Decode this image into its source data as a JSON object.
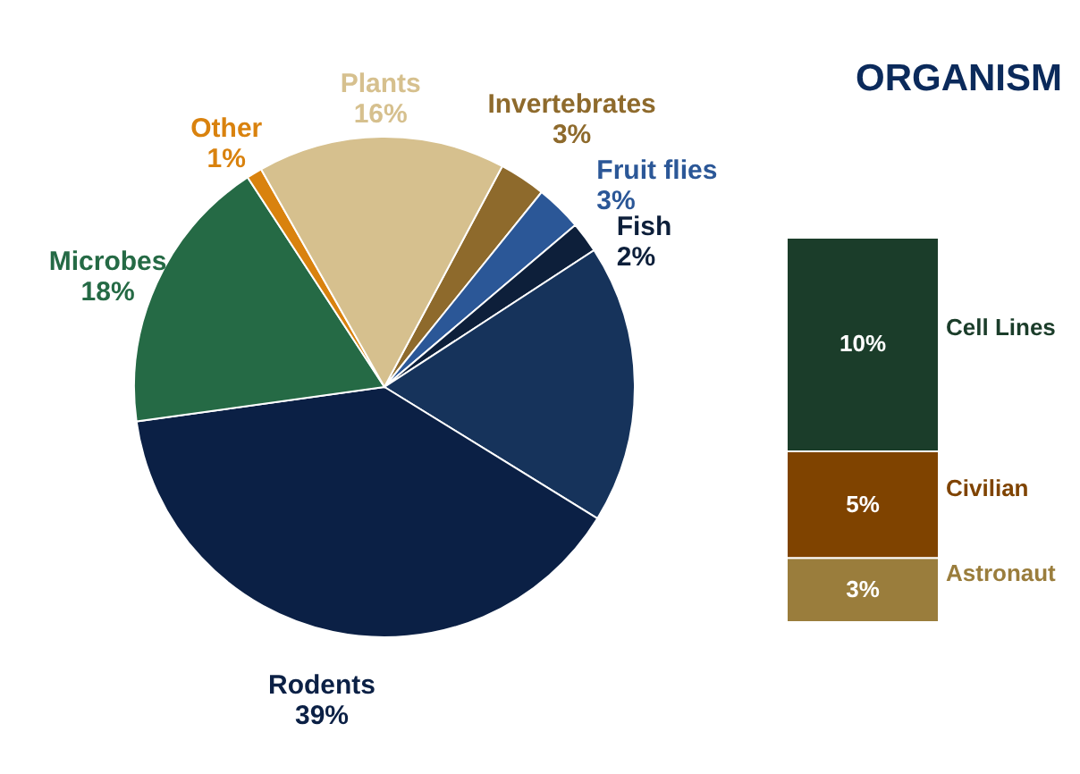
{
  "chart_data": [
    {
      "type": "pie",
      "categories": [
        "Invertebrates",
        "Fruit flies",
        "Fish",
        null,
        "Rodents",
        "Microbes",
        "Other",
        "Plants"
      ],
      "values": [
        3,
        3,
        2,
        18,
        39,
        18,
        1,
        16
      ],
      "value_labels": [
        "3%",
        "3%",
        "2%",
        null,
        "39%",
        "18%",
        "1%",
        "16%"
      ],
      "colors": [
        "#8e6a2c",
        "#2b5797",
        "#0d1f3a",
        "#16335b",
        "#0b2045",
        "#256a45",
        "#d9820e",
        "#d6c08e"
      ]
    },
    {
      "type": "bar",
      "title": "ORGANISM",
      "stacked": true,
      "categories": [
        null
      ],
      "series": [
        {
          "name": "Astronaut",
          "color": "#9a7d3c",
          "values": [
            3
          ],
          "value_labels": [
            "3%"
          ]
        },
        {
          "name": "Civilian",
          "color": "#7f4300",
          "values": [
            5
          ],
          "value_labels": [
            "5%"
          ]
        },
        {
          "name": "Cell Lines",
          "color": "#1b3d2a",
          "values": [
            10
          ],
          "value_labels": [
            "10%"
          ]
        }
      ]
    }
  ]
}
